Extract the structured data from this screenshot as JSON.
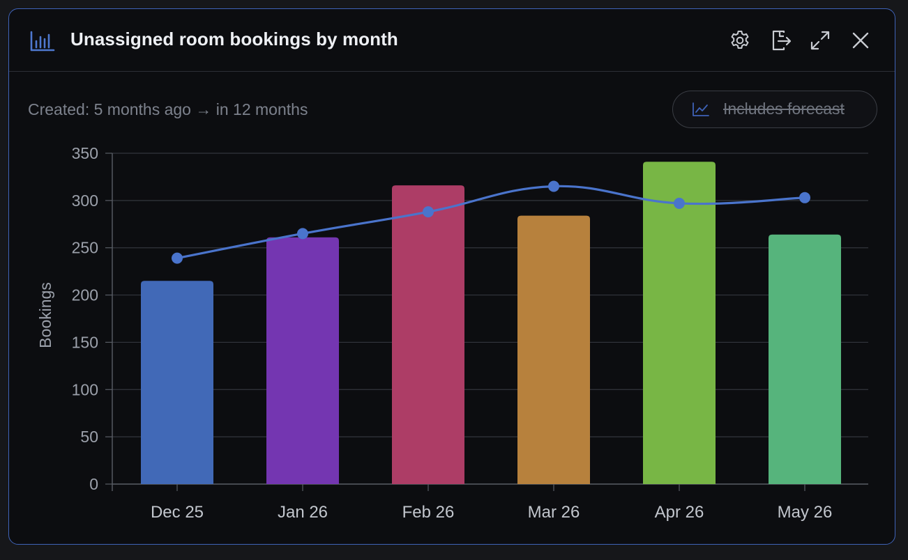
{
  "window": {
    "title": "Unassigned room bookings by month",
    "subtitle": "Created: 5 months ago → in 12 months",
    "icons": [
      "bar-chart-icon",
      "gear-icon",
      "export-icon",
      "expand-icon",
      "close-icon"
    ]
  },
  "toolbar": {
    "forecast_label": "Includes forecast",
    "forecast_icon": "line-chart-icon"
  },
  "colors": {
    "accent": "#3f63b8",
    "line": "#4a74cc"
  },
  "chart_data": {
    "type": "bar",
    "categories": [
      "Dec 25",
      "Jan 26",
      "Feb 26",
      "Mar 26",
      "Apr 26",
      "May 26"
    ],
    "values": [
      215,
      261,
      316,
      284,
      341,
      264
    ],
    "bar_colors": [
      "#4169b7",
      "#7436b1",
      "#ad3d66",
      "#b7813d",
      "#78b645",
      "#56b47c"
    ],
    "line_values": [
      239,
      265,
      288,
      315,
      297,
      303
    ],
    "title": "",
    "xlabel": "",
    "ylabel": "Bookings",
    "ylim": [
      0,
      350
    ],
    "yticks": [
      0,
      50,
      100,
      150,
      200,
      250,
      300,
      350
    ],
    "grid": true
  }
}
